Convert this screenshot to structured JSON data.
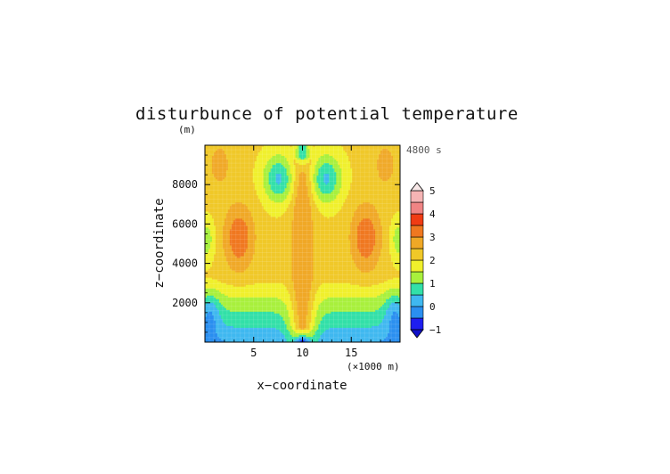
{
  "chart_data": {
    "type": "heatmap",
    "title": "disturbunce of potential temperature",
    "subtitle": "(m)",
    "time_label": "4800 s",
    "xlabel": "x−coordinate",
    "ylabel": "z−coordinate",
    "x_unit_label": "(×1000 m)",
    "xlim": [
      0,
      20
    ],
    "ylim": [
      0,
      10000
    ],
    "x_ticks": [
      5,
      10,
      15
    ],
    "x_tick_labels": [
      "5",
      "10",
      "15"
    ],
    "y_ticks": [
      2000,
      4000,
      6000,
      8000
    ],
    "y_tick_labels": [
      "2000",
      "4000",
      "6000",
      "8000"
    ],
    "colorbar": {
      "levels": [
        -1,
        -0.5,
        0,
        0.5,
        1,
        1.5,
        2,
        2.5,
        3,
        3.5,
        4,
        4.5,
        5
      ],
      "tick_values": [
        -1,
        0,
        1,
        2,
        3,
        4,
        5
      ],
      "tick_labels": [
        "−1",
        "0",
        "1",
        "2",
        "3",
        "4",
        "5"
      ],
      "colors": [
        "#1e1ef0",
        "#2a8ff0",
        "#3fb8f0",
        "#32e0a8",
        "#a8f03c",
        "#f0f02c",
        "#f0c828",
        "#f0a826",
        "#f07820",
        "#f03c14",
        "#f08484",
        "#f5b4b4"
      ],
      "extend": "both"
    },
    "features": [
      {
        "x": 3.5,
        "z": 5300,
        "value": 3.4
      },
      {
        "x": 16.5,
        "z": 5300,
        "value": 3.4
      },
      {
        "x": 10.0,
        "z": 6200,
        "value": 2.7
      },
      {
        "x": 10.0,
        "z": 9000,
        "value": 0.5
      },
      {
        "x": 10.0,
        "z": 100,
        "value": -0.8
      },
      {
        "x": 1.0,
        "z": 1400,
        "value": 0.3
      },
      {
        "x": 19.0,
        "z": 1400,
        "value": 0.3
      }
    ]
  }
}
